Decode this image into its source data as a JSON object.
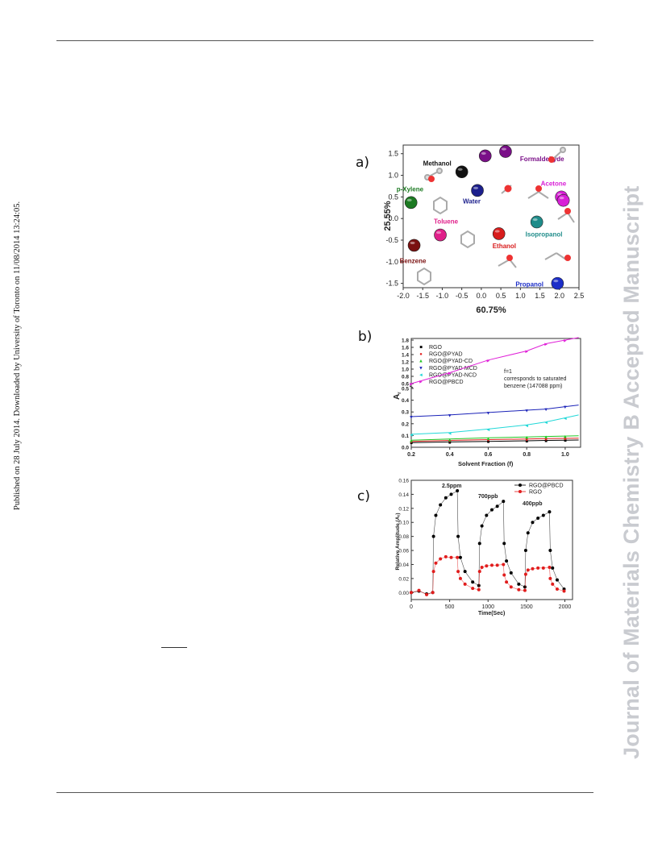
{
  "sidebar": {
    "published": "Published on 28 July 2014. Downloaded by University of Toronto on 11/08/2014 13:24:05.",
    "journal_watermark": "Journal of Materials Chemistry B Accepted Manuscript"
  },
  "figure": {
    "panel_labels": [
      "a)",
      "b)",
      "c)"
    ]
  },
  "chart_data": [
    {
      "type": "scatter",
      "panel": "a)",
      "xlabel": "60.75%",
      "ylabel": "25.55%",
      "xlim": [
        -2.0,
        2.5
      ],
      "ylim": [
        -1.6,
        1.7
      ],
      "xticks": [
        "-2.0",
        "-1.5",
        "-1.0",
        "-0.5",
        "0.0",
        "0.5",
        "1.0",
        "1.5",
        "2.0",
        "2.5"
      ],
      "yticks": [
        "1.5",
        "1.0",
        "0.5",
        "0.0",
        "-0.5",
        "-1.0",
        "-1.5"
      ],
      "series": [
        {
          "name": "Methanol",
          "color": "#111111",
          "points": [
            [
              -0.5,
              1.08
            ]
          ]
        },
        {
          "name": "Formaldehyde",
          "color": "#7a0f88",
          "points": [
            [
              0.1,
              1.45
            ],
            [
              0.62,
              1.55
            ]
          ]
        },
        {
          "name": "p-Xylene",
          "color": "#1c7a22",
          "points": [
            [
              -1.8,
              0.37
            ]
          ]
        },
        {
          "name": "Water",
          "color": "#1c1f8c",
          "points": [
            [
              -0.1,
              0.65
            ]
          ]
        },
        {
          "name": "Acetone",
          "color": "#d81fd6",
          "points": [
            [
              2.05,
              0.5
            ],
            [
              2.1,
              0.42
            ]
          ]
        },
        {
          "name": "Toluene",
          "color": "#e0208a",
          "points": [
            [
              -1.05,
              -0.38
            ]
          ]
        },
        {
          "name": "Ethanol",
          "color": "#d81c1c",
          "points": [
            [
              0.45,
              -0.35
            ]
          ]
        },
        {
          "name": "Isopropanol",
          "color": "#1f8c8a",
          "points": [
            [
              1.42,
              -0.08
            ]
          ]
        },
        {
          "name": "Benzene",
          "color": "#7a1010",
          "points": [
            [
              -1.72,
              -0.62
            ]
          ]
        },
        {
          "name": "Propanol",
          "color": "#1c2ec8",
          "points": [
            [
              1.95,
              -1.5
            ]
          ]
        }
      ]
    },
    {
      "type": "line",
      "panel": "b)",
      "xlabel": "Solvent Fraction (f)",
      "ylabel": "Ar",
      "xlim": [
        0.2,
        1.08
      ],
      "xticks": [
        "0.2",
        "0.4",
        "0.6",
        "0.8",
        "1.0"
      ],
      "yticks": [
        "1.8",
        "1.6",
        "1.4",
        "1.2",
        "1.0",
        "0.8",
        "0.6",
        "0.5",
        "0.4",
        "0.3",
        "0.2",
        "0.1",
        "0.0"
      ],
      "annotation": [
        "f=1",
        "corresponds to saturated",
        "benzene (147088 ppm)"
      ],
      "series": [
        {
          "name": "RGO",
          "color": "#000000",
          "marker": "■",
          "x": [
            0.2,
            0.4,
            0.6,
            0.8,
            0.9,
            1.0
          ],
          "y": [
            0.04,
            0.045,
            0.05,
            0.055,
            0.058,
            0.06
          ]
        },
        {
          "name": "RGO@PYAD",
          "color": "#e11d1d",
          "marker": "●",
          "x": [
            0.2,
            0.4,
            0.6,
            0.8,
            0.9,
            1.0
          ],
          "y": [
            0.05,
            0.058,
            0.065,
            0.07,
            0.073,
            0.075
          ]
        },
        {
          "name": "RGO@PYAD-CD",
          "color": "#22c522",
          "marker": "▲",
          "x": [
            0.2,
            0.4,
            0.6,
            0.8,
            0.9,
            1.0
          ],
          "y": [
            0.06,
            0.07,
            0.08,
            0.088,
            0.092,
            0.095
          ]
        },
        {
          "name": "RGO@PYAD-MCD",
          "color": "#1a22b8",
          "marker": "▼",
          "x": [
            0.2,
            0.4,
            0.6,
            0.8,
            0.9,
            1.0
          ],
          "y": [
            0.26,
            0.275,
            0.295,
            0.315,
            0.325,
            0.345
          ]
        },
        {
          "name": "RGO@PYAD-NCD",
          "color": "#22d8d8",
          "marker": "◄",
          "x": [
            0.2,
            0.4,
            0.6,
            0.8,
            0.9,
            1.0
          ],
          "y": [
            0.11,
            0.125,
            0.155,
            0.19,
            0.215,
            0.25
          ]
        },
        {
          "name": "RGO@PBCD",
          "color": "#e020d8",
          "marker": "►",
          "x": [
            0.2,
            0.4,
            0.6,
            0.8,
            0.9,
            1.0
          ],
          "y": [
            0.6,
            0.9,
            1.25,
            1.5,
            1.7,
            1.8
          ]
        }
      ]
    },
    {
      "type": "line",
      "panel": "c)",
      "xlabel": "Time(Sec)",
      "ylabel": "Relative Amplitude (Ar)",
      "xlim": [
        0,
        2100
      ],
      "ylim": [
        -0.01,
        0.16
      ],
      "xticks": [
        "0",
        "500",
        "1000",
        "1500",
        "2000"
      ],
      "yticks": [
        "0.16",
        "0.14",
        "0.12",
        "0.10",
        "0.08",
        "0.06",
        "0.04",
        "0.02",
        "0.00"
      ],
      "annotations": [
        "2.5ppm",
        "700ppb",
        "400ppb"
      ],
      "series": [
        {
          "name": "RGO@PBCD",
          "color": "#000000",
          "x": [
            0,
            100,
            200,
            280,
            290,
            320,
            380,
            450,
            520,
            600,
            610,
            640,
            700,
            800,
            880,
            890,
            920,
            980,
            1050,
            1120,
            1200,
            1210,
            1240,
            1300,
            1400,
            1480,
            1490,
            1520,
            1580,
            1650,
            1720,
            1800,
            1810,
            1840,
            1900,
            1990
          ],
          "y": [
            0.0,
            0.002,
            -0.002,
            0.0,
            0.08,
            0.11,
            0.125,
            0.135,
            0.14,
            0.145,
            0.08,
            0.05,
            0.03,
            0.015,
            0.01,
            0.07,
            0.095,
            0.11,
            0.118,
            0.123,
            0.13,
            0.07,
            0.045,
            0.028,
            0.012,
            0.008,
            0.06,
            0.085,
            0.1,
            0.106,
            0.11,
            0.115,
            0.06,
            0.035,
            0.018,
            0.005
          ]
        },
        {
          "name": "RGO",
          "color": "#e11d1d",
          "x": [
            0,
            100,
            200,
            280,
            290,
            320,
            380,
            450,
            520,
            600,
            610,
            640,
            700,
            800,
            880,
            890,
            920,
            980,
            1050,
            1120,
            1200,
            1210,
            1240,
            1300,
            1400,
            1480,
            1490,
            1520,
            1580,
            1650,
            1720,
            1800,
            1810,
            1840,
            1900,
            1990
          ],
          "y": [
            0.0,
            0.003,
            -0.003,
            0.0,
            0.03,
            0.042,
            0.048,
            0.051,
            0.05,
            0.05,
            0.03,
            0.02,
            0.012,
            0.006,
            0.004,
            0.03,
            0.036,
            0.038,
            0.039,
            0.039,
            0.04,
            0.025,
            0.015,
            0.008,
            0.004,
            0.003,
            0.026,
            0.032,
            0.034,
            0.035,
            0.035,
            0.036,
            0.02,
            0.012,
            0.005,
            0.002
          ]
        }
      ]
    }
  ]
}
